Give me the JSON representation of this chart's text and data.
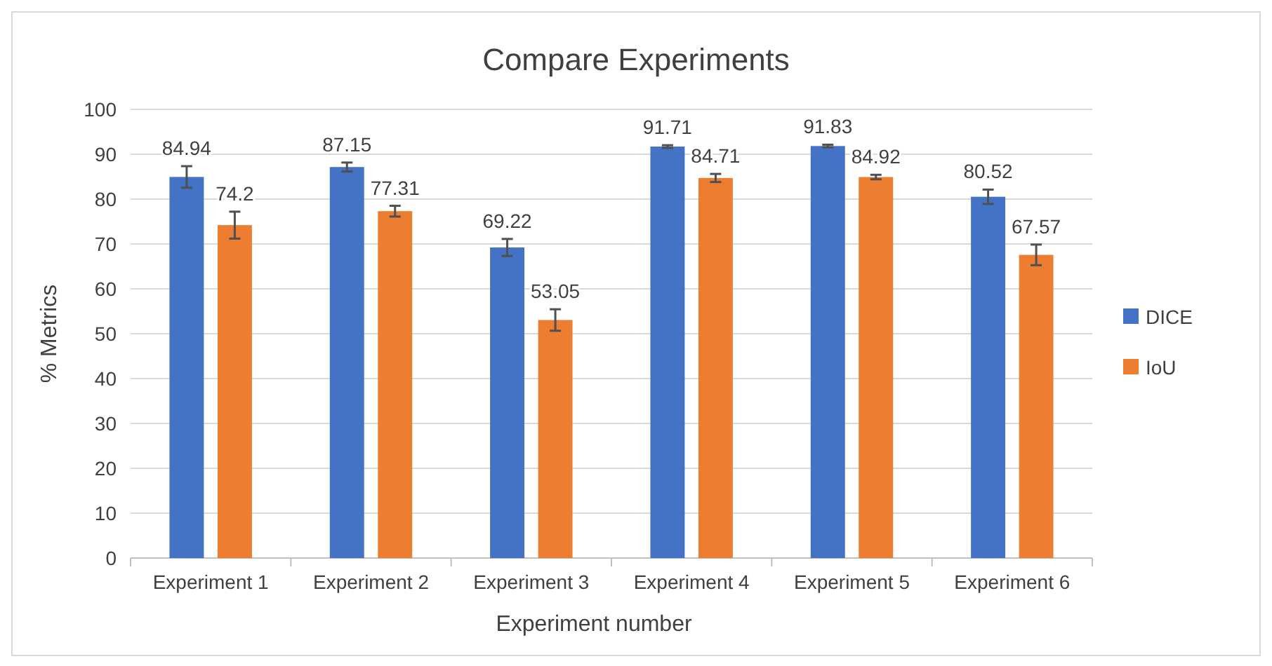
{
  "chart_data": {
    "type": "bar",
    "title": "Compare Experiments",
    "xlabel": "Experiment number",
    "ylabel": "% Metrics",
    "categories": [
      "Experiment 1",
      "Experiment 2",
      "Experiment 3",
      "Experiment 4",
      "Experiment 5",
      "Experiment 6"
    ],
    "series": [
      {
        "name": "DICE",
        "color": "#4472c4",
        "values": [
          84.94,
          87.15,
          69.22,
          91.71,
          91.83,
          80.52
        ],
        "errors": [
          2.4,
          1,
          1.9,
          0.3,
          0.3,
          1.6
        ]
      },
      {
        "name": "IoU",
        "color": "#ed7d31",
        "values": [
          74.2,
          77.31,
          53.05,
          84.71,
          84.92,
          67.57
        ],
        "errors": [
          3,
          1.2,
          2.4,
          0.9,
          0.5,
          2.3
        ]
      }
    ],
    "ylim": [
      0,
      100
    ],
    "yticks": [
      0,
      10,
      20,
      30,
      40,
      50,
      60,
      70,
      80,
      90,
      100
    ],
    "grid": true,
    "legend": "right",
    "data_labels": true
  }
}
